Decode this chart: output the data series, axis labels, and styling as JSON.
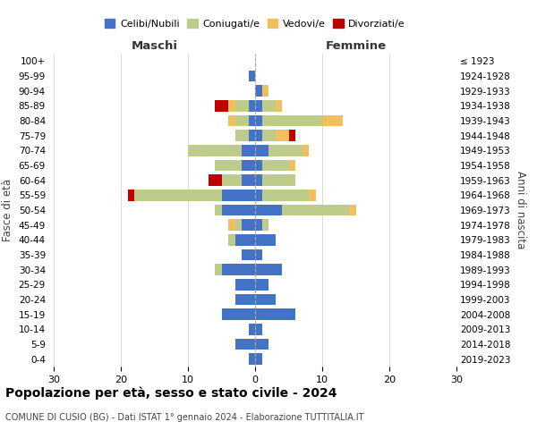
{
  "age_groups": [
    "0-4",
    "5-9",
    "10-14",
    "15-19",
    "20-24",
    "25-29",
    "30-34",
    "35-39",
    "40-44",
    "45-49",
    "50-54",
    "55-59",
    "60-64",
    "65-69",
    "70-74",
    "75-79",
    "80-84",
    "85-89",
    "90-94",
    "95-99",
    "100+"
  ],
  "birth_years": [
    "2019-2023",
    "2014-2018",
    "2009-2013",
    "2004-2008",
    "1999-2003",
    "1994-1998",
    "1989-1993",
    "1984-1988",
    "1979-1983",
    "1974-1978",
    "1969-1973",
    "1964-1968",
    "1959-1963",
    "1954-1958",
    "1949-1953",
    "1944-1948",
    "1939-1943",
    "1934-1938",
    "1929-1933",
    "1924-1928",
    "≤ 1923"
  ],
  "colors": {
    "celibi": "#4472C4",
    "coniugati": "#BDCC8B",
    "vedovi": "#F0C060",
    "divorziati": "#C00000"
  },
  "males": {
    "celibi": [
      1,
      3,
      1,
      5,
      3,
      3,
      5,
      2,
      3,
      2,
      5,
      5,
      2,
      2,
      2,
      1,
      1,
      1,
      0,
      1,
      0
    ],
    "coniugati": [
      0,
      0,
      0,
      0,
      0,
      0,
      1,
      0,
      1,
      1,
      1,
      13,
      3,
      4,
      8,
      2,
      2,
      2,
      0,
      0,
      0
    ],
    "vedovi": [
      0,
      0,
      0,
      0,
      0,
      0,
      0,
      0,
      0,
      1,
      0,
      0,
      0,
      0,
      0,
      0,
      1,
      1,
      0,
      0,
      0
    ],
    "divorziati": [
      0,
      0,
      0,
      0,
      0,
      0,
      0,
      0,
      0,
      0,
      0,
      1,
      2,
      0,
      0,
      0,
      0,
      2,
      0,
      0,
      0
    ]
  },
  "females": {
    "nubili": [
      1,
      2,
      1,
      6,
      3,
      2,
      4,
      1,
      3,
      1,
      4,
      1,
      1,
      1,
      2,
      1,
      1,
      1,
      1,
      0,
      0
    ],
    "coniugate": [
      0,
      0,
      0,
      0,
      0,
      0,
      0,
      0,
      0,
      1,
      10,
      7,
      5,
      4,
      5,
      2,
      9,
      2,
      0,
      0,
      0
    ],
    "vedove": [
      0,
      0,
      0,
      0,
      0,
      0,
      0,
      0,
      0,
      0,
      1,
      1,
      0,
      1,
      1,
      2,
      3,
      1,
      1,
      0,
      0
    ],
    "divorziate": [
      0,
      0,
      0,
      0,
      0,
      0,
      0,
      0,
      0,
      0,
      0,
      0,
      0,
      0,
      0,
      1,
      0,
      0,
      0,
      0,
      0
    ]
  },
  "title": "Popolazione per età, sesso e stato civile - 2024",
  "subtitle": "COMUNE DI CUSIO (BG) - Dati ISTAT 1° gennaio 2024 - Elaborazione TUTTITALIA.IT",
  "xlabel_left": "Maschi",
  "xlabel_right": "Femmine",
  "ylabel_left": "Fasce di età",
  "ylabel_right": "Anni di nascita",
  "xlim": 30,
  "legend_labels": [
    "Celibi/Nubili",
    "Coniugati/e",
    "Vedovi/e",
    "Divorziati/e"
  ]
}
